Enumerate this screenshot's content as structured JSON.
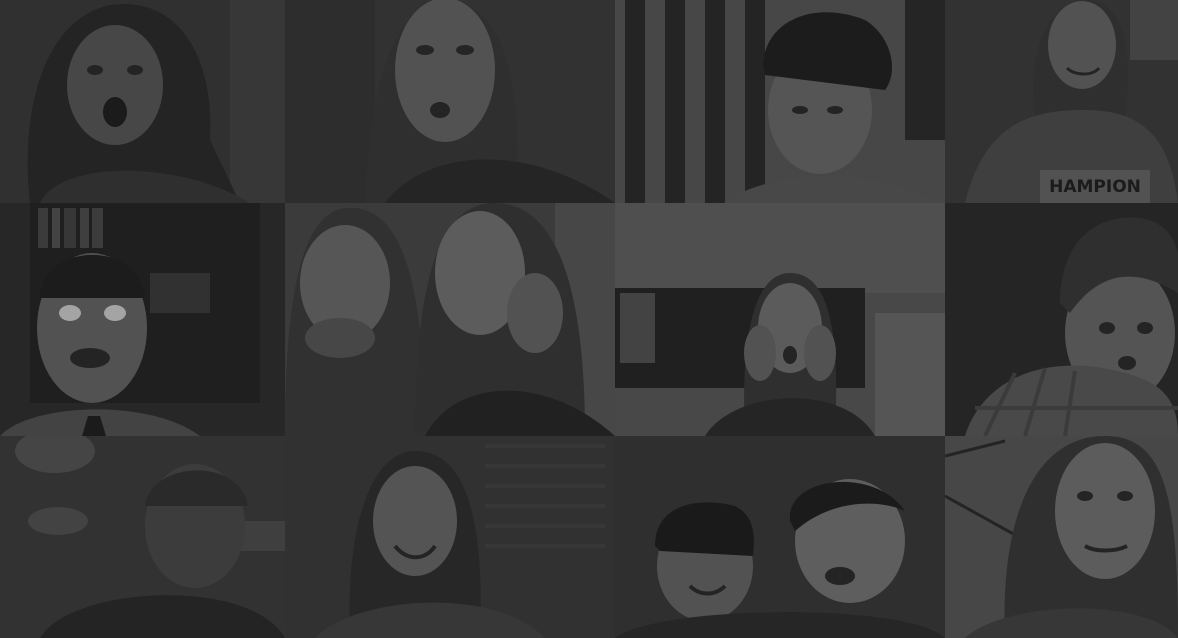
{
  "collage": {
    "tiles": [
      {
        "id": "tile-r1c1",
        "subject": "woman-surprised",
        "tone": "#3a3a3a"
      },
      {
        "id": "tile-r1c2",
        "subject": "woman-looking-aside",
        "tone": "#3b3b3b"
      },
      {
        "id": "tile-r1c3",
        "subject": "man-cap-flag",
        "tone": "#3c3c3c"
      },
      {
        "id": "tile-r1c4",
        "subject": "girl-smiling",
        "tone": "#3a3a3a"
      },
      {
        "id": "tile-r2c1",
        "subject": "man-shocked-bookshelf",
        "tone": "#2f2f2f"
      },
      {
        "id": "tile-r2c2",
        "subject": "two-women-reacting",
        "tone": "#3a3a3a"
      },
      {
        "id": "tile-r2c3",
        "subject": "woman-hands-on-face",
        "tone": "#3b3b3b"
      },
      {
        "id": "tile-r2c4",
        "subject": "boy-plaid-shirt",
        "tone": "#2e2e2e"
      },
      {
        "id": "tile-r3c1",
        "subject": "man-dim-room",
        "tone": "#3a3a3a"
      },
      {
        "id": "tile-r3c2",
        "subject": "woman-laughing",
        "tone": "#3a3a3a"
      },
      {
        "id": "tile-r3c3",
        "subject": "two-boys-laughing",
        "tone": "#333333"
      },
      {
        "id": "tile-r3c4",
        "subject": "woman-grimacing",
        "tone": "#3c3c3c"
      }
    ],
    "shirt_text": "HAMPION"
  }
}
